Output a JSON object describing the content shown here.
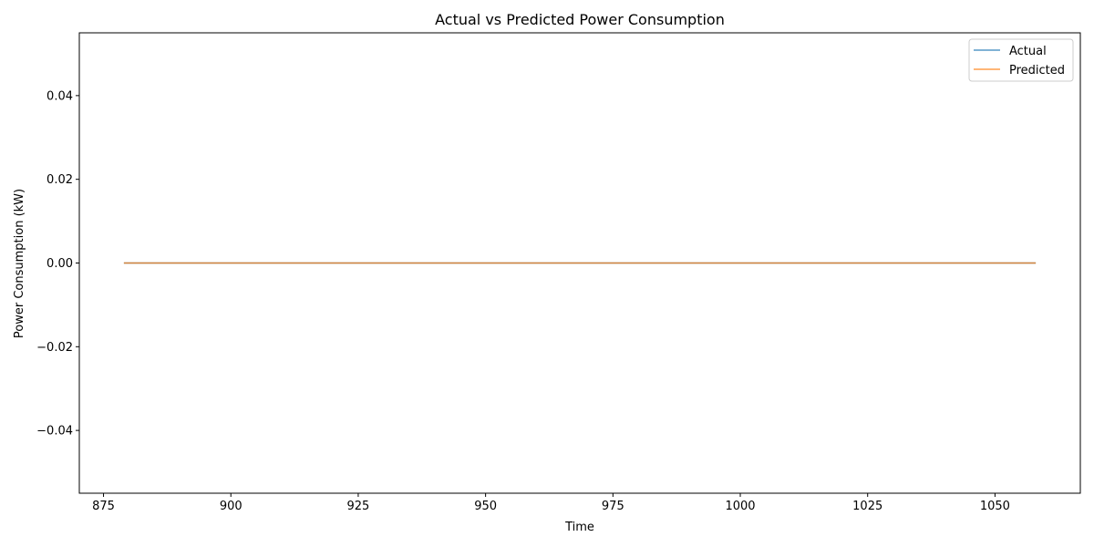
{
  "chart_data": {
    "type": "line",
    "title": "Actual vs Predicted Power Consumption",
    "xlabel": "Time",
    "ylabel": "Power Consumption (kW)",
    "xlim": [
      870.25,
      1066.75
    ],
    "ylim": [
      -0.055,
      0.055
    ],
    "x_ticks": [
      875,
      900,
      925,
      950,
      975,
      1000,
      1025,
      1050
    ],
    "y_ticks": [
      -0.04,
      -0.02,
      0.0,
      0.02,
      0.04
    ],
    "x_tick_labels": [
      "875",
      "900",
      "925",
      "950",
      "975",
      "1000",
      "1025",
      "1050"
    ],
    "y_tick_labels": [
      "−0.04",
      "−0.02",
      "0.00",
      "0.02",
      "0.04"
    ],
    "grid": false,
    "legend_position": "top-right",
    "series": [
      {
        "name": "Actual",
        "color": "#1f77b4",
        "x": [
          879,
          1058
        ],
        "y": [
          0,
          0
        ]
      },
      {
        "name": "Predicted",
        "color": "#ff7f0e",
        "x": [
          879,
          1058
        ],
        "y": [
          0,
          0
        ]
      }
    ]
  }
}
